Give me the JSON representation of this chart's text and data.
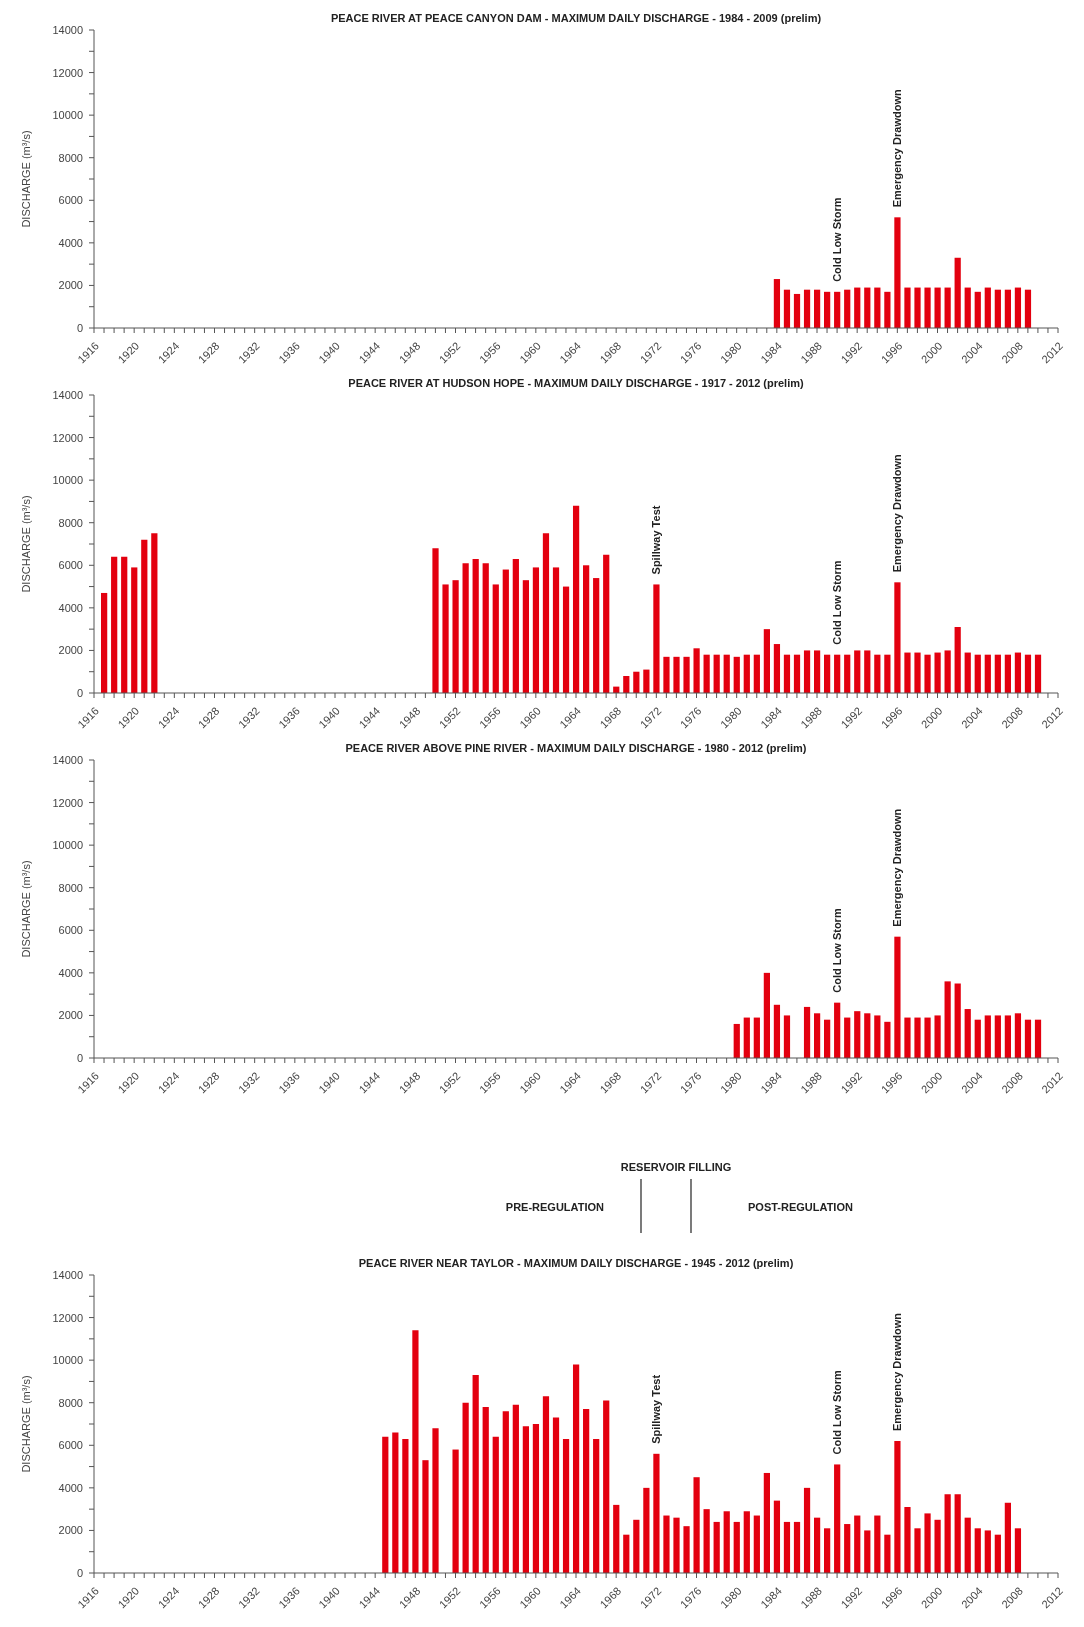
{
  "chart_data": [
    {
      "type": "bar",
      "title": "PEACE RIVER AT PEACE CANYON DAM - MAXIMUM DAILY DISCHARGE - 1984 - 2009 (prelim)",
      "ylabel": "DISCHARGE (m³/s)",
      "color": "#e3000f",
      "x": [
        1984,
        1985,
        1986,
        1987,
        1988,
        1989,
        1990,
        1991,
        1992,
        1993,
        1994,
        1995,
        1996,
        1997,
        1998,
        1999,
        2000,
        2001,
        2002,
        2003,
        2004,
        2005,
        2006,
        2007,
        2008,
        2009
      ],
      "values": [
        2300,
        1800,
        1600,
        1800,
        1800,
        1700,
        1700,
        1800,
        1900,
        1900,
        1900,
        1700,
        5200,
        1900,
        1900,
        1900,
        1900,
        1900,
        3300,
        1900,
        1700,
        1900,
        1800,
        1800,
        1900,
        1800
      ],
      "annotations": [
        {
          "text": "Cold Low Storm",
          "x": 1990,
          "y": 1700
        },
        {
          "text": "Emergency Drawdown",
          "x": 1996,
          "y": 5200
        }
      ],
      "xlim": [
        1916,
        2012
      ],
      "ylim": [
        0,
        14000
      ],
      "yticks": [
        0,
        {
          "value": 1000,
          "label": null
        },
        2000,
        {
          "value": 3000,
          "label": null
        },
        4000,
        {
          "value": 5000,
          "label": null
        },
        6000,
        {
          "value": 7000,
          "label": null
        },
        8000,
        {
          "value": 9000,
          "label": null
        },
        10000,
        {
          "value": 11000,
          "label": null
        },
        12000,
        {
          "value": 13000,
          "label": null
        },
        14000
      ],
      "xticks": [
        1916,
        {
          "value": 1917,
          "label": null
        },
        {
          "value": 1918,
          "label": null
        },
        {
          "value": 1919,
          "label": null
        },
        1920,
        {
          "value": 1921,
          "label": null
        },
        {
          "value": 1922,
          "label": null
        },
        {
          "value": 1923,
          "label": null
        },
        1924,
        {
          "value": 1925,
          "label": null
        },
        {
          "value": 1926,
          "label": null
        },
        {
          "value": 1927,
          "label": null
        },
        1928,
        {
          "value": 1929,
          "label": null
        },
        {
          "value": 1930,
          "label": null
        },
        {
          "value": 1931,
          "label": null
        },
        1932,
        {
          "value": 1933,
          "label": null
        },
        {
          "value": 1934,
          "label": null
        },
        {
          "value": 1935,
          "label": null
        },
        1936,
        {
          "value": 1937,
          "label": null
        },
        {
          "value": 1938,
          "label": null
        },
        {
          "value": 1939,
          "label": null
        },
        1940,
        {
          "value": 1941,
          "label": null
        },
        {
          "value": 1942,
          "label": null
        },
        {
          "value": 1943,
          "label": null
        },
        1944,
        {
          "value": 1945,
          "label": null
        },
        {
          "value": 1946,
          "label": null
        },
        {
          "value": 1947,
          "label": null
        },
        1948,
        {
          "value": 1949,
          "label": null
        },
        {
          "value": 1950,
          "label": null
        },
        {
          "value": 1951,
          "label": null
        },
        1952,
        {
          "value": 1953,
          "label": null
        },
        {
          "value": 1954,
          "label": null
        },
        {
          "value": 1955,
          "label": null
        },
        1956,
        {
          "value": 1957,
          "label": null
        },
        {
          "value": 1958,
          "label": null
        },
        {
          "value": 1959,
          "label": null
        },
        1960,
        {
          "value": 1961,
          "label": null
        },
        {
          "value": 1962,
          "label": null
        },
        {
          "value": 1963,
          "label": null
        },
        1964,
        {
          "value": 1965,
          "label": null
        },
        {
          "value": 1966,
          "label": null
        },
        {
          "value": 1967,
          "label": null
        },
        1968,
        {
          "value": 1969,
          "label": null
        },
        {
          "value": 1970,
          "label": null
        },
        {
          "value": 1971,
          "label": null
        },
        1972,
        {
          "value": 1973,
          "label": null
        },
        {
          "value": 1974,
          "label": null
        },
        {
          "value": 1975,
          "label": null
        },
        1976,
        {
          "value": 1977,
          "label": null
        },
        {
          "value": 1978,
          "label": null
        },
        {
          "value": 1979,
          "label": null
        },
        1980,
        {
          "value": 1981,
          "label": null
        },
        {
          "value": 1982,
          "label": null
        },
        {
          "value": 1983,
          "label": null
        },
        1984,
        {
          "value": 1985,
          "label": null
        },
        {
          "value": 1986,
          "label": null
        },
        {
          "value": 1987,
          "label": null
        },
        1988,
        {
          "value": 1989,
          "label": null
        },
        {
          "value": 1990,
          "label": null
        },
        {
          "value": 1991,
          "label": null
        },
        1992,
        {
          "value": 1993,
          "label": null
        },
        {
          "value": 1994,
          "label": null
        },
        {
          "value": 1995,
          "label": null
        },
        1996,
        {
          "value": 1997,
          "label": null
        },
        {
          "value": 1998,
          "label": null
        },
        {
          "value": 1999,
          "label": null
        },
        2000,
        {
          "value": 2001,
          "label": null
        },
        {
          "value": 2002,
          "label": null
        },
        {
          "value": 2003,
          "label": null
        },
        2004,
        {
          "value": 2005,
          "label": null
        },
        {
          "value": 2006,
          "label": null
        },
        {
          "value": 2007,
          "label": null
        },
        2008,
        {
          "value": 2009,
          "label": null
        },
        {
          "value": 2010,
          "label": null
        },
        {
          "value": 2011,
          "label": null
        },
        2012
      ]
    },
    {
      "type": "bar",
      "title": "PEACE RIVER AT HUDSON HOPE - MAXIMUM DAILY DISCHARGE - 1917 - 2012 (prelim)",
      "ylabel": "DISCHARGE (m³/s)",
      "color": "#e3000f",
      "x": [
        1917,
        1918,
        1919,
        1920,
        1921,
        1922,
        1950,
        1951,
        1952,
        1953,
        1954,
        1955,
        1956,
        1957,
        1958,
        1959,
        1960,
        1961,
        1962,
        1963,
        1964,
        1965,
        1966,
        1967,
        1968,
        1969,
        1970,
        1971,
        1972,
        1973,
        1974,
        1975,
        1976,
        1977,
        1978,
        1979,
        1980,
        1981,
        1982,
        1983,
        1984,
        1985,
        1986,
        1987,
        1988,
        1989,
        1990,
        1991,
        1992,
        1993,
        1994,
        1995,
        1996,
        1997,
        1998,
        1999,
        2000,
        2001,
        2002,
        2003,
        2004,
        2005,
        2006,
        2007,
        2008,
        2009,
        2010
      ],
      "values": [
        4700,
        6400,
        6400,
        5900,
        7200,
        7500,
        6800,
        5100,
        5300,
        6100,
        6300,
        6100,
        5100,
        5800,
        6300,
        5300,
        5900,
        7500,
        5900,
        5000,
        8800,
        6000,
        5400,
        6500,
        300,
        800,
        1000,
        1100,
        5100,
        1700,
        1700,
        1700,
        2100,
        1800,
        1800,
        1800,
        1700,
        1800,
        1800,
        3000,
        2300,
        1800,
        1800,
        2000,
        2000,
        1800,
        1800,
        1800,
        2000,
        2000,
        1800,
        1800,
        5200,
        1900,
        1900,
        1800,
        1900,
        2000,
        3100,
        1900,
        1800,
        1800,
        1800,
        1800,
        1900,
        1800,
        1800
      ],
      "annotations": [
        {
          "text": "Spillway Test",
          "x": 1972,
          "y": 5100
        },
        {
          "text": "Cold Low Storm",
          "x": 1990,
          "y": 1800
        },
        {
          "text": "Emergency Drawdown",
          "x": 1996,
          "y": 5200
        }
      ],
      "xlim": [
        1916,
        2012
      ],
      "ylim": [
        0,
        14000
      ],
      "yticks": [
        0,
        {
          "value": 1000,
          "label": null
        },
        2000,
        {
          "value": 3000,
          "label": null
        },
        4000,
        {
          "value": 5000,
          "label": null
        },
        6000,
        {
          "value": 7000,
          "label": null
        },
        8000,
        {
          "value": 9000,
          "label": null
        },
        10000,
        {
          "value": 11000,
          "label": null
        },
        12000,
        {
          "value": 13000,
          "label": null
        },
        14000
      ],
      "xticks": [
        1916,
        {
          "value": 1917,
          "label": null
        },
        {
          "value": 1918,
          "label": null
        },
        {
          "value": 1919,
          "label": null
        },
        1920,
        {
          "value": 1921,
          "label": null
        },
        {
          "value": 1922,
          "label": null
        },
        {
          "value": 1923,
          "label": null
        },
        1924,
        {
          "value": 1925,
          "label": null
        },
        {
          "value": 1926,
          "label": null
        },
        {
          "value": 1927,
          "label": null
        },
        1928,
        {
          "value": 1929,
          "label": null
        },
        {
          "value": 1930,
          "label": null
        },
        {
          "value": 1931,
          "label": null
        },
        1932,
        {
          "value": 1933,
          "label": null
        },
        {
          "value": 1934,
          "label": null
        },
        {
          "value": 1935,
          "label": null
        },
        1936,
        {
          "value": 1937,
          "label": null
        },
        {
          "value": 1938,
          "label": null
        },
        {
          "value": 1939,
          "label": null
        },
        1940,
        {
          "value": 1941,
          "label": null
        },
        {
          "value": 1942,
          "label": null
        },
        {
          "value": 1943,
          "label": null
        },
        1944,
        {
          "value": 1945,
          "label": null
        },
        {
          "value": 1946,
          "label": null
        },
        {
          "value": 1947,
          "label": null
        },
        1948,
        {
          "value": 1949,
          "label": null
        },
        {
          "value": 1950,
          "label": null
        },
        {
          "value": 1951,
          "label": null
        },
        1952,
        {
          "value": 1953,
          "label": null
        },
        {
          "value": 1954,
          "label": null
        },
        {
          "value": 1955,
          "label": null
        },
        1956,
        {
          "value": 1957,
          "label": null
        },
        {
          "value": 1958,
          "label": null
        },
        {
          "value": 1959,
          "label": null
        },
        1960,
        {
          "value": 1961,
          "label": null
        },
        {
          "value": 1962,
          "label": null
        },
        {
          "value": 1963,
          "label": null
        },
        1964,
        {
          "value": 1965,
          "label": null
        },
        {
          "value": 1966,
          "label": null
        },
        {
          "value": 1967,
          "label": null
        },
        1968,
        {
          "value": 1969,
          "label": null
        },
        {
          "value": 1970,
          "label": null
        },
        {
          "value": 1971,
          "label": null
        },
        1972,
        {
          "value": 1973,
          "label": null
        },
        {
          "value": 1974,
          "label": null
        },
        {
          "value": 1975,
          "label": null
        },
        1976,
        {
          "value": 1977,
          "label": null
        },
        {
          "value": 1978,
          "label": null
        },
        {
          "value": 1979,
          "label": null
        },
        1980,
        {
          "value": 1981,
          "label": null
        },
        {
          "value": 1982,
          "label": null
        },
        {
          "value": 1983,
          "label": null
        },
        1984,
        {
          "value": 1985,
          "label": null
        },
        {
          "value": 1986,
          "label": null
        },
        {
          "value": 1987,
          "label": null
        },
        1988,
        {
          "value": 1989,
          "label": null
        },
        {
          "value": 1990,
          "label": null
        },
        {
          "value": 1991,
          "label": null
        },
        1992,
        {
          "value": 1993,
          "label": null
        },
        {
          "value": 1994,
          "label": null
        },
        {
          "value": 1995,
          "label": null
        },
        1996,
        {
          "value": 1997,
          "label": null
        },
        {
          "value": 1998,
          "label": null
        },
        {
          "value": 1999,
          "label": null
        },
        2000,
        {
          "value": 2001,
          "label": null
        },
        {
          "value": 2002,
          "label": null
        },
        {
          "value": 2003,
          "label": null
        },
        2004,
        {
          "value": 2005,
          "label": null
        },
        {
          "value": 2006,
          "label": null
        },
        {
          "value": 2007,
          "label": null
        },
        2008,
        {
          "value": 2009,
          "label": null
        },
        {
          "value": 2010,
          "label": null
        },
        {
          "value": 2011,
          "label": null
        },
        2012
      ]
    },
    {
      "type": "bar",
      "title": "PEACE RIVER ABOVE PINE RIVER - MAXIMUM DAILY DISCHARGE - 1980 - 2012 (prelim)",
      "ylabel": "DISCHARGE (m³/s)",
      "color": "#e3000f",
      "x": [
        1980,
        1981,
        1982,
        1983,
        1984,
        1985,
        1987,
        1988,
        1989,
        1990,
        1991,
        1992,
        1993,
        1994,
        1995,
        1996,
        1997,
        1998,
        1999,
        2000,
        2001,
        2002,
        2003,
        2004,
        2005,
        2006,
        2007,
        2008,
        2009,
        2010
      ],
      "values": [
        1600,
        1900,
        1900,
        4000,
        2500,
        2000,
        2400,
        2100,
        1800,
        2600,
        1900,
        2200,
        2100,
        2000,
        1700,
        5700,
        1900,
        1900,
        1900,
        2000,
        3600,
        3500,
        2300,
        1800,
        2000,
        2000,
        2000,
        2100,
        1800,
        1800
      ],
      "annotations": [
        {
          "text": "Cold Low Storm",
          "x": 1990,
          "y": 2600
        },
        {
          "text": "Emergency Drawdown",
          "x": 1996,
          "y": 5700
        }
      ],
      "xlim": [
        1916,
        2012
      ],
      "ylim": [
        0,
        14000
      ],
      "yticks": [
        0,
        {
          "value": 1000,
          "label": null
        },
        2000,
        {
          "value": 3000,
          "label": null
        },
        4000,
        {
          "value": 5000,
          "label": null
        },
        6000,
        {
          "value": 7000,
          "label": null
        },
        8000,
        {
          "value": 9000,
          "label": null
        },
        10000,
        {
          "value": 11000,
          "label": null
        },
        12000,
        {
          "value": 13000,
          "label": null
        },
        14000
      ],
      "xticks": [
        1916,
        {
          "value": 1917,
          "label": null
        },
        {
          "value": 1918,
          "label": null
        },
        {
          "value": 1919,
          "label": null
        },
        1920,
        {
          "value": 1921,
          "label": null
        },
        {
          "value": 1922,
          "label": null
        },
        {
          "value": 1923,
          "label": null
        },
        1924,
        {
          "value": 1925,
          "label": null
        },
        {
          "value": 1926,
          "label": null
        },
        {
          "value": 1927,
          "label": null
        },
        1928,
        {
          "value": 1929,
          "label": null
        },
        {
          "value": 1930,
          "label": null
        },
        {
          "value": 1931,
          "label": null
        },
        1932,
        {
          "value": 1933,
          "label": null
        },
        {
          "value": 1934,
          "label": null
        },
        {
          "value": 1935,
          "label": null
        },
        1936,
        {
          "value": 1937,
          "label": null
        },
        {
          "value": 1938,
          "label": null
        },
        {
          "value": 1939,
          "label": null
        },
        1940,
        {
          "value": 1941,
          "label": null
        },
        {
          "value": 1942,
          "label": null
        },
        {
          "value": 1943,
          "label": null
        },
        1944,
        {
          "value": 1945,
          "label": null
        },
        {
          "value": 1946,
          "label": null
        },
        {
          "value": 1947,
          "label": null
        },
        1948,
        {
          "value": 1949,
          "label": null
        },
        {
          "value": 1950,
          "label": null
        },
        {
          "value": 1951,
          "label": null
        },
        1952,
        {
          "value": 1953,
          "label": null
        },
        {
          "value": 1954,
          "label": null
        },
        {
          "value": 1955,
          "label": null
        },
        1956,
        {
          "value": 1957,
          "label": null
        },
        {
          "value": 1958,
          "label": null
        },
        {
          "value": 1959,
          "label": null
        },
        1960,
        {
          "value": 1961,
          "label": null
        },
        {
          "value": 1962,
          "label": null
        },
        {
          "value": 1963,
          "label": null
        },
        1964,
        {
          "value": 1965,
          "label": null
        },
        {
          "value": 1966,
          "label": null
        },
        {
          "value": 1967,
          "label": null
        },
        1968,
        {
          "value": 1969,
          "label": null
        },
        {
          "value": 1970,
          "label": null
        },
        {
          "value": 1971,
          "label": null
        },
        1972,
        {
          "value": 1973,
          "label": null
        },
        {
          "value": 1974,
          "label": null
        },
        {
          "value": 1975,
          "label": null
        },
        1976,
        {
          "value": 1977,
          "label": null
        },
        {
          "value": 1978,
          "label": null
        },
        {
          "value": 1979,
          "label": null
        },
        1980,
        {
          "value": 1981,
          "label": null
        },
        {
          "value": 1982,
          "label": null
        },
        {
          "value": 1983,
          "label": null
        },
        1984,
        {
          "value": 1985,
          "label": null
        },
        {
          "value": 1986,
          "label": null
        },
        {
          "value": 1987,
          "label": null
        },
        1988,
        {
          "value": 1989,
          "label": null
        },
        {
          "value": 1990,
          "label": null
        },
        {
          "value": 1991,
          "label": null
        },
        1992,
        {
          "value": 1993,
          "label": null
        },
        {
          "value": 1994,
          "label": null
        },
        {
          "value": 1995,
          "label": null
        },
        1996,
        {
          "value": 1997,
          "label": null
        },
        {
          "value": 1998,
          "label": null
        },
        {
          "value": 1999,
          "label": null
        },
        2000,
        {
          "value": 2001,
          "label": null
        },
        {
          "value": 2002,
          "label": null
        },
        {
          "value": 2003,
          "label": null
        },
        2004,
        {
          "value": 2005,
          "label": null
        },
        {
          "value": 2006,
          "label": null
        },
        {
          "value": 2007,
          "label": null
        },
        2008,
        {
          "value": 2009,
          "label": null
        },
        {
          "value": 2010,
          "label": null
        },
        {
          "value": 2011,
          "label": null
        },
        2012
      ]
    },
    {
      "type": "bar",
      "title": "PEACE RIVER NEAR TAYLOR - MAXIMUM DAILY DISCHARGE - 1945 - 2012 (prelim)",
      "ylabel": "DISCHARGE (m³/s)",
      "color": "#e3000f",
      "x": [
        1945,
        1946,
        1947,
        1948,
        1949,
        1950,
        1952,
        1953,
        1954,
        1955,
        1956,
        1957,
        1958,
        1959,
        1960,
        1961,
        1962,
        1963,
        1964,
        1965,
        1966,
        1967,
        1968,
        1969,
        1970,
        1971,
        1972,
        1973,
        1974,
        1975,
        1976,
        1977,
        1978,
        1979,
        1980,
        1981,
        1982,
        1983,
        1984,
        1985,
        1986,
        1987,
        1988,
        1989,
        1990,
        1991,
        1992,
        1993,
        1994,
        1995,
        1996,
        1997,
        1998,
        1999,
        2000,
        2001,
        2002,
        2003,
        2004,
        2005,
        2006,
        2007,
        2008
      ],
      "values": [
        6400,
        6600,
        6300,
        11400,
        5300,
        6800,
        5800,
        8000,
        9300,
        7800,
        6400,
        7600,
        7900,
        6900,
        7000,
        8300,
        7300,
        6300,
        9800,
        7700,
        6300,
        8100,
        3200,
        1800,
        2500,
        4000,
        5600,
        2700,
        2600,
        2200,
        4500,
        3000,
        2400,
        2900,
        2400,
        2900,
        2700,
        4700,
        3400,
        2400,
        2400,
        4000,
        2600,
        2100,
        5100,
        2300,
        2700,
        2000,
        2700,
        1800,
        6200,
        3100,
        2100,
        2800,
        2500,
        3700,
        3700,
        2600,
        2100,
        2000,
        1800,
        3300,
        2100
      ],
      "annotations": [
        "RESERVOIR FILLING",
        "PRE-REGULATION",
        "POST-REGULATION",
        {
          "text": "Spillway Test",
          "x": 1972,
          "y": 5600
        },
        {
          "text": "Cold Low Storm",
          "x": 1990,
          "y": 5100
        },
        {
          "text": "Emergency Drawdown",
          "x": 1996,
          "y": 6200
        }
      ],
      "xlim": [
        1916,
        2012
      ],
      "ylim": [
        0,
        14000
      ],
      "yticks": [
        0,
        {
          "value": 1000,
          "label": null
        },
        2000,
        {
          "value": 3000,
          "label": null
        },
        4000,
        {
          "value": 5000,
          "label": null
        },
        6000,
        {
          "value": 7000,
          "label": null
        },
        8000,
        {
          "value": 9000,
          "label": null
        },
        10000,
        {
          "value": 11000,
          "label": null
        },
        12000,
        {
          "value": 13000,
          "label": null
        },
        14000
      ],
      "xticks": [
        1916,
        {
          "value": 1917,
          "label": null
        },
        {
          "value": 1918,
          "label": null
        },
        {
          "value": 1919,
          "label": null
        },
        1920,
        {
          "value": 1921,
          "label": null
        },
        {
          "value": 1922,
          "label": null
        },
        {
          "value": 1923,
          "label": null
        },
        1924,
        {
          "value": 1925,
          "label": null
        },
        {
          "value": 1926,
          "label": null
        },
        {
          "value": 1927,
          "label": null
        },
        1928,
        {
          "value": 1929,
          "label": null
        },
        {
          "value": 1930,
          "label": null
        },
        {
          "value": 1931,
          "label": null
        },
        1932,
        {
          "value": 1933,
          "label": null
        },
        {
          "value": 1934,
          "label": null
        },
        {
          "value": 1935,
          "label": null
        },
        1936,
        {
          "value": 1937,
          "label": null
        },
        {
          "value": 1938,
          "label": null
        },
        {
          "value": 1939,
          "label": null
        },
        1940,
        {
          "value": 1941,
          "label": null
        },
        {
          "value": 1942,
          "label": null
        },
        {
          "value": 1943,
          "label": null
        },
        1944,
        {
          "value": 1945,
          "label": null
        },
        {
          "value": 1946,
          "label": null
        },
        {
          "value": 1947,
          "label": null
        },
        1948,
        {
          "value": 1949,
          "label": null
        },
        {
          "value": 1950,
          "label": null
        },
        {
          "value": 1951,
          "label": null
        },
        1952,
        {
          "value": 1953,
          "label": null
        },
        {
          "value": 1954,
          "label": null
        },
        {
          "value": 1955,
          "label": null
        },
        1956,
        {
          "value": 1957,
          "label": null
        },
        {
          "value": 1958,
          "label": null
        },
        {
          "value": 1959,
          "label": null
        },
        1960,
        {
          "value": 1961,
          "label": null
        },
        {
          "value": 1962,
          "label": null
        },
        {
          "value": 1963,
          "label": null
        },
        1964,
        {
          "value": 1965,
          "label": null
        },
        {
          "value": 1966,
          "label": null
        },
        {
          "value": 1967,
          "label": null
        },
        1968,
        {
          "value": 1969,
          "label": null
        },
        {
          "value": 1970,
          "label": null
        },
        {
          "value": 1971,
          "label": null
        },
        1972,
        {
          "value": 1973,
          "label": null
        },
        {
          "value": 1974,
          "label": null
        },
        {
          "value": 1975,
          "label": null
        },
        1976,
        {
          "value": 1977,
          "label": null
        },
        {
          "value": 1978,
          "label": null
        },
        {
          "value": 1979,
          "label": null
        },
        1980,
        {
          "value": 1981,
          "label": null
        },
        {
          "value": 1982,
          "label": null
        },
        {
          "value": 1983,
          "label": null
        },
        1984,
        {
          "value": 1985,
          "label": null
        },
        {
          "value": 1986,
          "label": null
        },
        {
          "value": 1987,
          "label": null
        },
        1988,
        {
          "value": 1989,
          "label": null
        },
        {
          "value": 1990,
          "label": null
        },
        {
          "value": 1991,
          "label": null
        },
        1992,
        {
          "value": 1993,
          "label": null
        },
        {
          "value": 1994,
          "label": null
        },
        {
          "value": 1995,
          "label": null
        },
        1996,
        {
          "value": 1997,
          "label": null
        },
        {
          "value": 1998,
          "label": null
        },
        {
          "value": 1999,
          "label": null
        },
        2000,
        {
          "value": 2001,
          "label": null
        },
        {
          "value": 2002,
          "label": null
        },
        {
          "value": 2003,
          "label": null
        },
        2004,
        {
          "value": 2005,
          "label": null
        },
        {
          "value": 2006,
          "label": null
        },
        {
          "value": 2007,
          "label": null
        },
        2008,
        {
          "value": 2009,
          "label": null
        },
        {
          "value": 2010,
          "label": null
        },
        {
          "value": 2011,
          "label": null
        },
        2012
      ]
    }
  ]
}
